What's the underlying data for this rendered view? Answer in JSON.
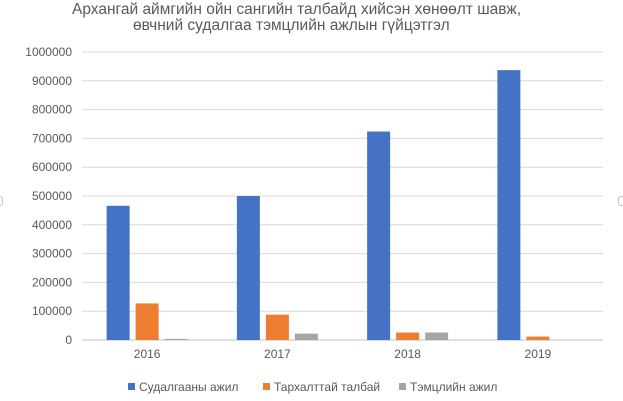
{
  "chart_data": {
    "type": "bar",
    "title_line1": "Архангай аймгийн ойн сангийн талбайд хийсэн хөнөөлт шавж,",
    "title_line2": "өвчний судалгаа тэмцлийн ажлын гүйцэтгэл",
    "categories": [
      "2016",
      "2017",
      "2018",
      "2019"
    ],
    "series": [
      {
        "name": "Судалгааны ажил",
        "color": "#4472C4",
        "values": [
          466000,
          500000,
          724000,
          937000
        ]
      },
      {
        "name": "Тархалттай талбай",
        "color": "#ED7D31",
        "values": [
          127000,
          88000,
          26000,
          12000
        ]
      },
      {
        "name": "Тэмцлийн ажил",
        "color": "#A5A5A5",
        "values": [
          4000,
          22000,
          26000,
          0
        ]
      }
    ],
    "yticks": [
      "0",
      "100000",
      "200000",
      "300000",
      "400000",
      "500000",
      "600000",
      "700000",
      "800000",
      "900000",
      "1000000"
    ],
    "ylim": [
      0,
      1000000
    ],
    "grid": true,
    "legend_position": "bottom"
  }
}
